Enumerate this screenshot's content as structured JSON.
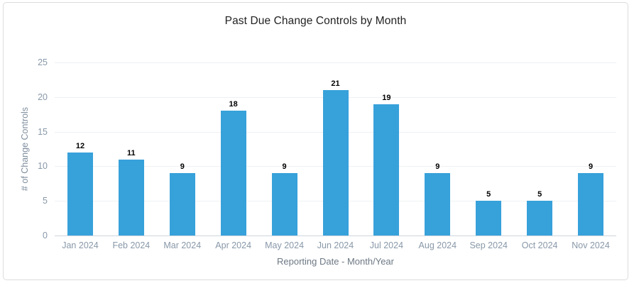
{
  "page": {
    "background": "#ffffff"
  },
  "chart_data": {
    "type": "bar",
    "title": "Past Due Change Controls by Month",
    "xlabel": "Reporting Date - Month/Year",
    "ylabel": "# of Change Controls",
    "categories": [
      "Jan 2024",
      "Feb 2024",
      "Mar 2024",
      "Apr 2024",
      "May 2024",
      "Jun 2024",
      "Jul 2024",
      "Aug 2024",
      "Sep 2024",
      "Oct 2024",
      "Nov 2024"
    ],
    "values": [
      12,
      11,
      9,
      18,
      9,
      21,
      19,
      9,
      5,
      5,
      9
    ],
    "ylim": [
      0,
      25
    ],
    "yticks": [
      0,
      5,
      10,
      15,
      20,
      25
    ],
    "grid": true,
    "legend": "none",
    "bar_color": "#37a1da",
    "value_label_color": "#000000",
    "axis_text_color": "#8898a8"
  }
}
